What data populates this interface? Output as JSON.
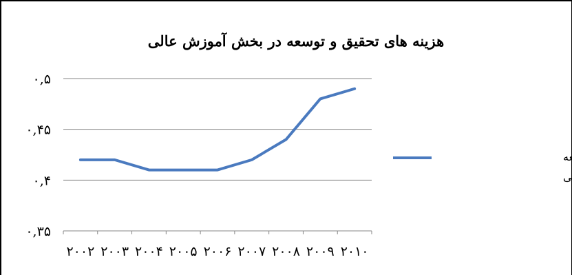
{
  "chart_data": {
    "type": "line",
    "title": "هزینه های تحقیق و توسعه در بخش آموزش عالی",
    "xlabel": "",
    "ylabel": "",
    "x": [
      "۲۰۰۲",
      "۲۰۰۳",
      "۲۰۰۴",
      "۲۰۰۵",
      "۲۰۰۶",
      "۲۰۰۷",
      "۲۰۰۸",
      "۲۰۰۹",
      "۲۰۱۰"
    ],
    "series": [
      {
        "name": "هزینه های تحقیق و توسعه در بخش آموزش عالی",
        "name_lines": [
          "هزینه های تحقیق و توسعه",
          "در بخش آموزش عالی"
        ],
        "color": "#4a7abf",
        "values": [
          0.42,
          0.42,
          0.41,
          0.41,
          0.41,
          0.42,
          0.44,
          0.48,
          0.49
        ]
      }
    ],
    "ylim": [
      0.35,
      0.5
    ],
    "yticks": [
      0.5,
      0.45,
      0.4,
      0.35
    ],
    "ytick_labels": [
      "۰,۵",
      "۰,۴۵",
      "۰,۴",
      "۰,۳۵"
    ],
    "grid": true,
    "legend": "right"
  }
}
